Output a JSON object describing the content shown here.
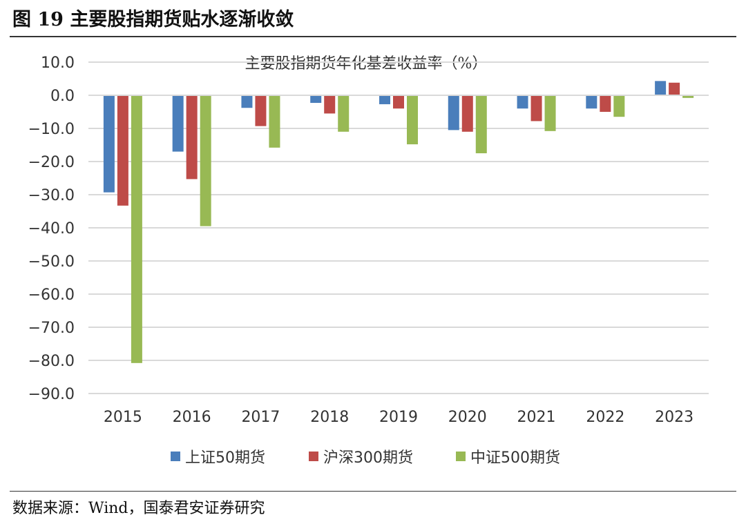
{
  "figure": {
    "title": "图 19 主要股指期货贴水逐渐收敛",
    "source": "数据来源：Wind，国泰君安证券研究"
  },
  "chart_data": {
    "type": "bar",
    "title": "主要股指期货年化基差收益率（%）",
    "xlabel": "",
    "ylabel": "",
    "categories": [
      "2015",
      "2016",
      "2017",
      "2018",
      "2019",
      "2020",
      "2021",
      "2022",
      "2023"
    ],
    "series": [
      {
        "name": "上证50期货",
        "color": "#4A7EBB",
        "values": [
          -29.3,
          -17.0,
          -3.8,
          -2.3,
          -2.7,
          -10.5,
          -4.0,
          -4.0,
          4.3
        ]
      },
      {
        "name": "沪深300期货",
        "color": "#BE4B48",
        "values": [
          -33.3,
          -25.3,
          -9.3,
          -5.5,
          -4.0,
          -11.0,
          -7.8,
          -5.0,
          3.8
        ]
      },
      {
        "name": "中证500期货",
        "color": "#98B954",
        "values": [
          -80.8,
          -39.5,
          -15.8,
          -11.0,
          -14.8,
          -17.5,
          -10.8,
          -6.5,
          -0.8
        ]
      }
    ],
    "ylim": [
      -90,
      10
    ],
    "yticks": [
      10,
      0,
      -10,
      -20,
      -30,
      -40,
      -50,
      -60,
      -70,
      -80,
      -90
    ],
    "ytick_labels": [
      "10.0",
      "0.0",
      "−10.0",
      "−20.0",
      "−30.0",
      "−40.0",
      "−50.0",
      "−60.0",
      "−70.0",
      "−80.0",
      "−90.0"
    ],
    "grid": true,
    "legend_position": "bottom"
  }
}
